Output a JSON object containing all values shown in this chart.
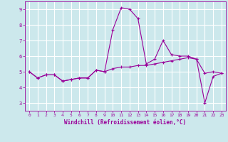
{
  "xlabel": "Windchill (Refroidissement éolien,°C)",
  "background_color": "#cce8ec",
  "grid_color": "#ffffff",
  "line_color": "#990099",
  "xlim": [
    -0.5,
    23.5
  ],
  "ylim": [
    2.5,
    9.5
  ],
  "yticks": [
    3,
    4,
    5,
    6,
    7,
    8,
    9
  ],
  "xticks": [
    0,
    1,
    2,
    3,
    4,
    5,
    6,
    7,
    8,
    9,
    10,
    11,
    12,
    13,
    14,
    15,
    16,
    17,
    18,
    19,
    20,
    21,
    22,
    23
  ],
  "line1_x": [
    0,
    1,
    2,
    3,
    4,
    5,
    6,
    7,
    8,
    9,
    10,
    11,
    12,
    13,
    14,
    15,
    16,
    17,
    18,
    19,
    20,
    21,
    22,
    23
  ],
  "line1_y": [
    5.0,
    4.6,
    4.8,
    4.8,
    4.4,
    4.5,
    4.6,
    4.6,
    5.1,
    5.0,
    7.7,
    9.1,
    9.0,
    8.4,
    5.5,
    5.8,
    7.0,
    6.1,
    6.0,
    6.0,
    5.8,
    3.0,
    4.7,
    4.9
  ],
  "line2_x": [
    0,
    1,
    2,
    3,
    4,
    5,
    6,
    7,
    8,
    9,
    10,
    11,
    12,
    13,
    14,
    15,
    16,
    17,
    18,
    19,
    20,
    21,
    22,
    23
  ],
  "line2_y": [
    5.0,
    4.6,
    4.8,
    4.8,
    4.4,
    4.5,
    4.6,
    4.6,
    5.1,
    5.0,
    5.2,
    5.3,
    5.3,
    5.4,
    5.4,
    5.5,
    5.6,
    5.7,
    5.8,
    5.9,
    5.8,
    4.9,
    5.0,
    4.9
  ],
  "figsize": [
    3.2,
    2.0
  ],
  "dpi": 100
}
